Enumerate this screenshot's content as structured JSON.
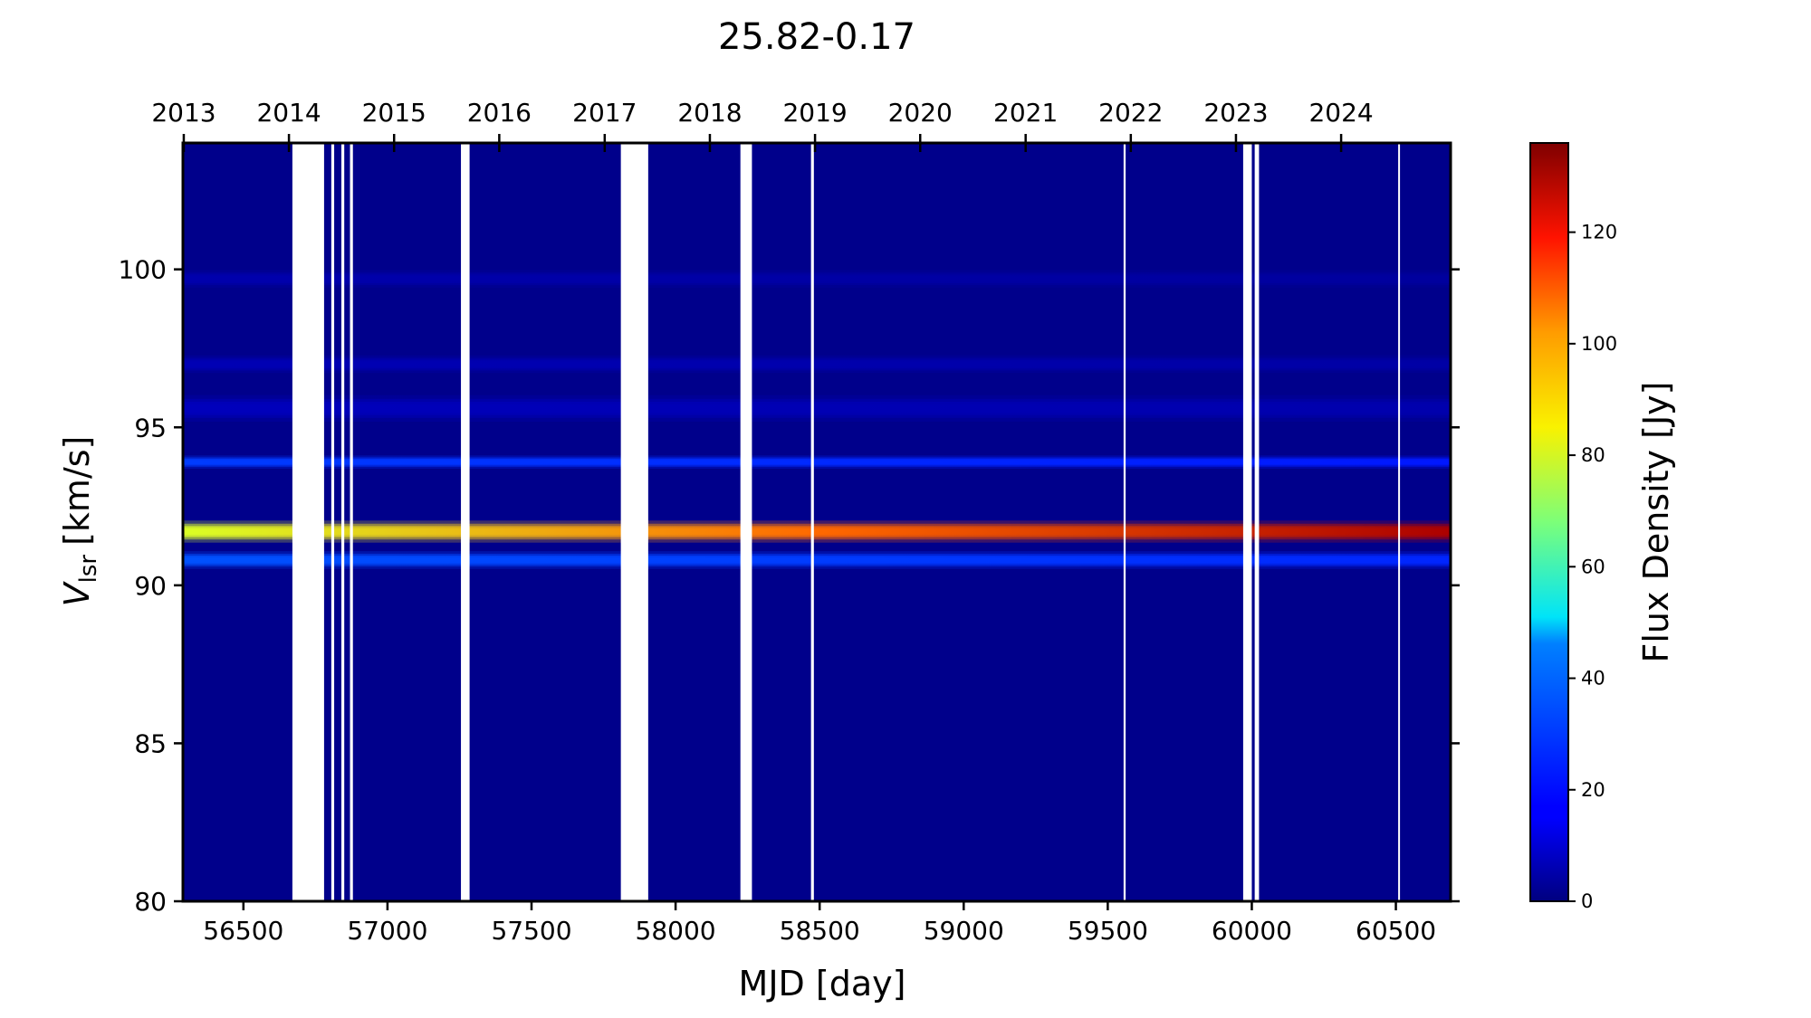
{
  "chart_data": {
    "type": "heatmap",
    "title": "25.82-0.17",
    "xlabel": "MJD [day]",
    "ylabel_main": "V",
    "ylabel_sub": "lsr",
    "ylabel_unit": "[km/s]",
    "xlim": [
      56290,
      60690
    ],
    "ylim": [
      80,
      104
    ],
    "x_ticks": [
      56500,
      57000,
      57500,
      58000,
      58500,
      59000,
      59500,
      60000,
      60500
    ],
    "y_ticks": [
      80,
      85,
      90,
      95,
      100
    ],
    "top_axis": {
      "ticks": [
        {
          "label": "2013",
          "mjd": 56293
        },
        {
          "label": "2014",
          "mjd": 56658
        },
        {
          "label": "2015",
          "mjd": 57023
        },
        {
          "label": "2016",
          "mjd": 57388
        },
        {
          "label": "2017",
          "mjd": 57754
        },
        {
          "label": "2018",
          "mjd": 58119
        },
        {
          "label": "2019",
          "mjd": 58484
        },
        {
          "label": "2020",
          "mjd": 58849
        },
        {
          "label": "2021",
          "mjd": 59215
        },
        {
          "label": "2022",
          "mjd": 59580
        },
        {
          "label": "2023",
          "mjd": 59945
        },
        {
          "label": "2024",
          "mjd": 60310
        }
      ]
    },
    "colorbar": {
      "label": "Flux Density [Jy]",
      "range": [
        0,
        136
      ],
      "ticks": [
        0,
        20,
        40,
        60,
        80,
        100,
        120
      ],
      "colormap": "jet"
    },
    "emission_features": [
      {
        "velocity": 91.7,
        "width": 0.5,
        "flux_start": 80,
        "flux_end": 130
      },
      {
        "velocity": 90.8,
        "width": 0.4,
        "flux_start": 28,
        "flux_end": 22
      },
      {
        "velocity": 93.9,
        "width": 0.3,
        "flux_start": 25,
        "flux_end": 20
      },
      {
        "velocity": 95.6,
        "width": 0.6,
        "flux_start": 8,
        "flux_end": 6
      },
      {
        "velocity": 97.0,
        "width": 0.4,
        "flux_start": 7,
        "flux_end": 5
      },
      {
        "velocity": 99.7,
        "width": 0.4,
        "flux_start": 6,
        "flux_end": 4
      }
    ],
    "data_gaps": [
      [
        56670,
        56780
      ],
      [
        56805,
        56815
      ],
      [
        56840,
        56850
      ],
      [
        56870,
        56880
      ],
      [
        57255,
        57285
      ],
      [
        57810,
        57905
      ],
      [
        58225,
        58265
      ],
      [
        58470,
        58480
      ],
      [
        59555,
        59562
      ],
      [
        59970,
        60000
      ],
      [
        60010,
        60025
      ],
      [
        60508,
        60514
      ]
    ]
  }
}
